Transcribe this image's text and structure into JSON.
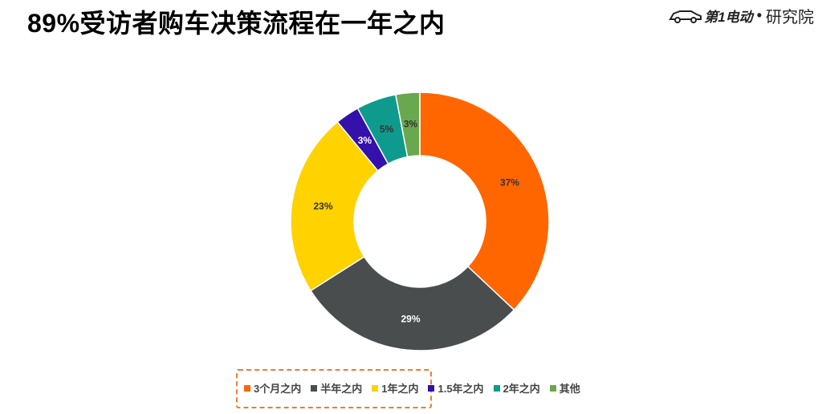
{
  "header": {
    "title": "89%受访者购车决策流程在一年之内",
    "brand_name": "第1电动",
    "brand_separator": "•",
    "brand_institute": "研究院"
  },
  "chart_data": {
    "type": "pie",
    "variant": "donut",
    "title": "",
    "categories": [
      "3个月之内",
      "半年之内",
      "1年之内",
      "1.5年之内",
      "2年之内",
      "其他"
    ],
    "values": [
      37,
      29,
      23,
      3,
      5,
      3
    ],
    "labels": [
      "37%",
      "29%",
      "23%",
      "3%",
      "5%",
      "3%"
    ],
    "colors": [
      "#ff6600",
      "#4a4d4e",
      "#ffd200",
      "#3311aa",
      "#0e9a8c",
      "#6aa84f"
    ],
    "label_colors": [
      "#333333",
      "#ffffff",
      "#333333",
      "#ffffff",
      "#333333",
      "#333333"
    ],
    "legend_position": "bottom",
    "start": "top",
    "direction": "clockwise"
  }
}
